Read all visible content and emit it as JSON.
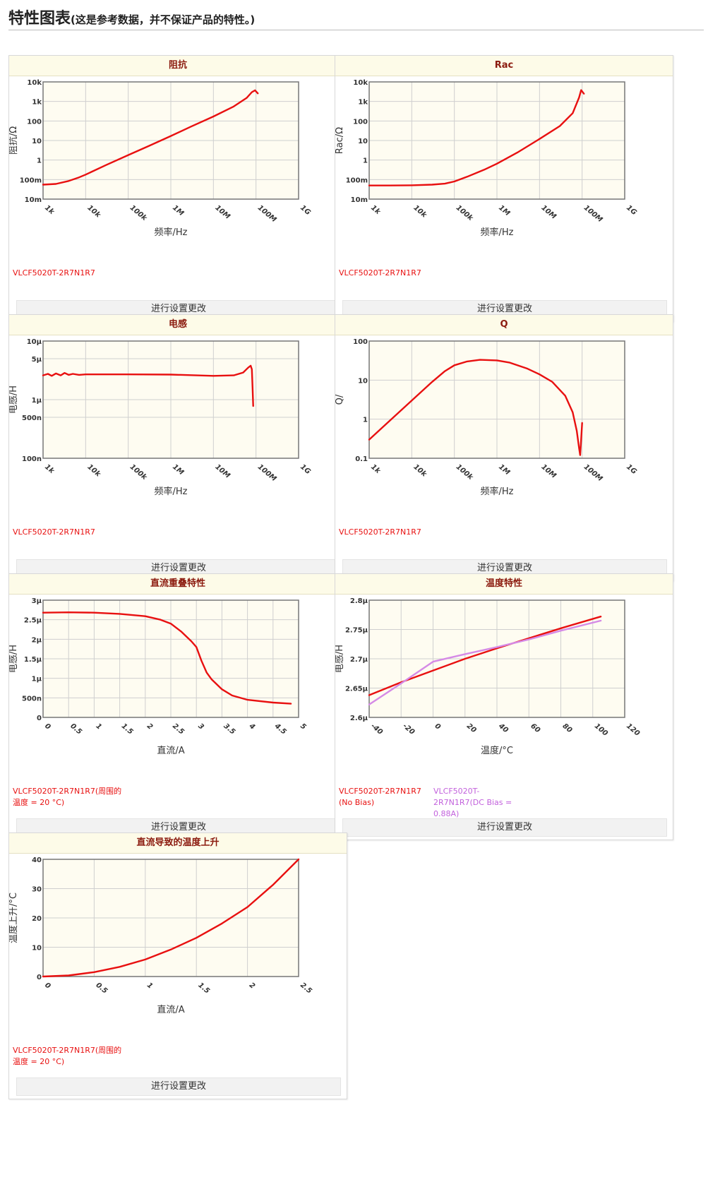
{
  "page": {
    "title": "特性图表",
    "subtitle": "(这是参考数据，并不保证产品的特性。)"
  },
  "colors": {
    "series_red": "#e81010",
    "series_violet": "#d58ae6",
    "legend_red": "#e81010",
    "legend_violet": "#c261dc",
    "plot_bg": "#fefcf1",
    "grid": "#cfcfcf",
    "frame": "#777777",
    "title_text": "#8b1a0e"
  },
  "footer_label": "进行设置更改",
  "panels": [
    {
      "title": "阻抗",
      "chart_data": {
        "type": "line",
        "xscale": "log",
        "yscale": "log",
        "xlim": [
          1000,
          1000000000
        ],
        "ylim": [
          0.01,
          10000
        ],
        "xlabel": "频率/Hz",
        "ylabel": "阻抗/Ω",
        "xticks": [
          1000,
          10000,
          100000,
          1000000,
          10000000,
          100000000,
          1000000000
        ],
        "xticklabels": [
          "1k",
          "10k",
          "100k",
          "1M",
          "10M",
          "100M",
          "1G"
        ],
        "yticks": [
          0.01,
          0.1,
          1,
          10,
          100,
          1000,
          10000
        ],
        "yticklabels": [
          "10m",
          "100m",
          "1",
          "10",
          "100",
          "1k",
          "10k"
        ],
        "grid": true,
        "series": [
          {
            "name": "VLCF5020T-2R7N1R7",
            "color": "red",
            "x": [
              1000,
              2000,
              4000,
              7000,
              10000,
              30000,
              100000,
              300000,
              1000000,
              3000000,
              10000000,
              30000000,
              60000000,
              80000000,
              95000000,
              110000000
            ],
            "y": [
              0.055,
              0.06,
              0.085,
              0.13,
              0.18,
              0.55,
              1.8,
              5.2,
              17,
              52,
              170,
              550,
              1500,
              3000,
              3700,
              2600
            ]
          }
        ]
      },
      "legend": [
        {
          "text": "VLCF5020T-2R7N1R7",
          "color": "red"
        }
      ]
    },
    {
      "title": "Rac",
      "chart_data": {
        "type": "line",
        "xscale": "log",
        "yscale": "log",
        "xlim": [
          1000,
          1000000000
        ],
        "ylim": [
          0.01,
          10000
        ],
        "xlabel": "频率/Hz",
        "ylabel": "Rac/Ω",
        "xticks": [
          1000,
          10000,
          100000,
          1000000,
          10000000,
          100000000,
          1000000000
        ],
        "xticklabels": [
          "1k",
          "10k",
          "100k",
          "1M",
          "10M",
          "100M",
          "1G"
        ],
        "yticks": [
          0.01,
          0.1,
          1,
          10,
          100,
          1000,
          10000
        ],
        "yticklabels": [
          "10m",
          "100m",
          "1",
          "10",
          "100",
          "1k",
          "10k"
        ],
        "grid": true,
        "series": [
          {
            "name": "VLCF5020T-2R7N1R7",
            "color": "red",
            "x": [
              1000,
              3000,
              10000,
              30000,
              60000,
              100000,
              200000,
              500000,
              1000000,
              3000000,
              10000000,
              30000000,
              60000000,
              85000000,
              95000000,
              110000000
            ],
            "y": [
              0.05,
              0.05,
              0.051,
              0.055,
              0.062,
              0.08,
              0.14,
              0.32,
              0.65,
              2.4,
              12,
              55,
              250,
              1600,
              3800,
              2500
            ]
          }
        ]
      },
      "legend": [
        {
          "text": "VLCF5020T-2R7N1R7",
          "color": "red"
        }
      ]
    },
    {
      "title": "电感",
      "chart_data": {
        "type": "line",
        "xscale": "log",
        "yscale": "log",
        "xlim": [
          1000,
          1000000000
        ],
        "ylim": [
          1e-07,
          1e-05
        ],
        "xlabel": "频率/Hz",
        "ylabel": "电感/H",
        "xticks": [
          1000,
          10000,
          100000,
          1000000,
          10000000,
          100000000,
          1000000000
        ],
        "xticklabels": [
          "1k",
          "10k",
          "100k",
          "1M",
          "10M",
          "100M",
          "1G"
        ],
        "yticks": [
          1e-07,
          5e-07,
          1e-06,
          5e-06,
          1e-05
        ],
        "yticklabels": [
          "100n",
          "500n",
          "1μ",
          "5μ",
          "10μ"
        ],
        "grid": true,
        "series": [
          {
            "name": "VLCF5020T-2R7N1R7",
            "color": "red",
            "x": [
              1000,
              1300,
              1600,
              2000,
              2600,
              3200,
              4000,
              5000,
              7000,
              10000,
              100000,
              1000000,
              10000000,
              30000000,
              50000000,
              65000000,
              75000000,
              80000000,
              83000000,
              86000000
            ],
            "y": [
              2.6e-06,
              2.75e-06,
              2.55e-06,
              2.8e-06,
              2.6e-06,
              2.85e-06,
              2.65e-06,
              2.75e-06,
              2.65e-06,
              2.7e-06,
              2.7e-06,
              2.68e-06,
              2.55e-06,
              2.6e-06,
              2.9e-06,
              3.5e-06,
              3.8e-06,
              3.3e-06,
              1.6e-06,
              7.8e-07
            ]
          }
        ]
      },
      "legend": [
        {
          "text": "VLCF5020T-2R7N1R7",
          "color": "red"
        }
      ]
    },
    {
      "title": "Q",
      "chart_data": {
        "type": "line",
        "xscale": "log",
        "yscale": "log",
        "xlim": [
          1000,
          1000000000
        ],
        "ylim": [
          0.1,
          100
        ],
        "xlabel": "频率/Hz",
        "ylabel": "Q/",
        "xticks": [
          1000,
          10000,
          100000,
          1000000,
          10000000,
          100000000,
          1000000000
        ],
        "xticklabels": [
          "1k",
          "10k",
          "100k",
          "1M",
          "10M",
          "100M",
          "1G"
        ],
        "yticks": [
          0.1,
          1,
          10,
          100
        ],
        "yticklabels": [
          "0.1",
          "1",
          "10",
          "100"
        ],
        "grid": true,
        "series": [
          {
            "name": "VLCF5020T-2R7N1R7",
            "color": "red",
            "x": [
              1000,
              2000,
              4000,
              10000,
              30000,
              60000,
              100000,
              200000,
              400000,
              1000000,
              2000000,
              5000000,
              10000000,
              20000000,
              40000000,
              60000000,
              75000000,
              85000000,
              90000000,
              95000000,
              100000000
            ],
            "y": [
              0.3,
              0.6,
              1.2,
              3,
              9,
              17,
              24,
              30,
              33,
              32,
              28,
              20,
              14,
              9,
              4,
              1.5,
              0.5,
              0.18,
              0.12,
              0.3,
              0.8
            ]
          }
        ]
      },
      "legend": [
        {
          "text": "VLCF5020T-2R7N1R7",
          "color": "red"
        }
      ]
    },
    {
      "title": "直流重叠特性",
      "chart_data": {
        "type": "line",
        "xscale": "linear",
        "yscale": "linear",
        "xlim": [
          0,
          5
        ],
        "ylim": [
          0,
          3e-06
        ],
        "xlabel": "直流/A",
        "ylabel": "电感/H",
        "xticks": [
          0,
          0.5,
          1,
          1.5,
          2,
          2.5,
          3,
          3.5,
          4,
          4.5,
          5
        ],
        "xticklabels": [
          "0",
          "0.5",
          "1",
          "1.5",
          "2",
          "2.5",
          "3",
          "3.5",
          "4",
          "4.5",
          "5"
        ],
        "yticks": [
          0,
          5e-07,
          1e-06,
          1.5e-06,
          2e-06,
          2.5e-06,
          3e-06
        ],
        "yticklabels": [
          "0",
          "500n",
          "1μ",
          "1.5μ",
          "2μ",
          "2.5μ",
          "3μ"
        ],
        "grid": true,
        "series": [
          {
            "name": "VLCF5020T-2R7N1R7",
            "color": "red",
            "x": [
              0,
              0.5,
              1,
              1.5,
              2,
              2.3,
              2.5,
              2.7,
              2.9,
              3.0,
              3.1,
              3.2,
              3.3,
              3.5,
              3.7,
              4.0,
              4.5,
              4.85
            ],
            "y": [
              2.68e-06,
              2.69e-06,
              2.68e-06,
              2.65e-06,
              2.59e-06,
              2.5e-06,
              2.4e-06,
              2.2e-06,
              1.95e-06,
              1.8e-06,
              1.45e-06,
              1.15e-06,
              9.7e-07,
              7.2e-07,
              5.6e-07,
              4.5e-07,
              3.8e-07,
              3.5e-07
            ]
          }
        ]
      },
      "legend": [
        {
          "text": "VLCF5020T-2R7N1R7(周围的温度 = 20 °C)",
          "color": "red"
        }
      ]
    },
    {
      "title": "温度特性",
      "chart_data": {
        "type": "line",
        "xscale": "linear",
        "yscale": "linear",
        "xlim": [
          -40,
          120
        ],
        "ylim": [
          2.6e-06,
          2.8e-06
        ],
        "xlabel": "温度/°C",
        "ylabel": "电感/H",
        "xticks": [
          -40,
          -20,
          0,
          20,
          40,
          60,
          80,
          100,
          120
        ],
        "xticklabels": [
          "-40",
          "-20",
          "0",
          "20",
          "40",
          "60",
          "80",
          "100",
          "120"
        ],
        "yticks": [
          2.6e-06,
          2.65e-06,
          2.7e-06,
          2.75e-06,
          2.8e-06
        ],
        "yticklabels": [
          "2.6μ",
          "2.65μ",
          "2.7μ",
          "2.75μ",
          "2.8μ"
        ],
        "grid": true,
        "series": [
          {
            "name": "VLCF5020T-2R7N1R7(No Bias)",
            "color": "red",
            "x": [
              -40,
              -20,
              0,
              20,
              40,
              60,
              80,
              105
            ],
            "y": [
              2.638e-06,
              2.66e-06,
              2.68e-06,
              2.7e-06,
              2.718e-06,
              2.735e-06,
              2.752e-06,
              2.772e-06
            ]
          },
          {
            "name": "VLCF5020T-2R7N1R7(DC Bias = 0.88A)",
            "color": "violet",
            "x": [
              -40,
              -20,
              0,
              20,
              40,
              60,
              80,
              105
            ],
            "y": [
              2.622e-06,
              2.658e-06,
              2.695e-06,
              2.708e-06,
              2.72e-06,
              2.733e-06,
              2.748e-06,
              2.765e-06
            ]
          }
        ]
      },
      "legend": [
        {
          "text": "VLCF5020T-2R7N1R7 (No Bias)",
          "color": "red"
        },
        {
          "text": "VLCF5020T-2R7N1R7(DC Bias = 0.88A)",
          "color": "violet"
        }
      ]
    },
    {
      "title": "直流导致的温度上升",
      "chart_data": {
        "type": "line",
        "xscale": "linear",
        "yscale": "linear",
        "xlim": [
          0,
          2.5
        ],
        "ylim": [
          0,
          40
        ],
        "xlabel": "直流/A",
        "ylabel": "温度上升/°C",
        "xticks": [
          0,
          0.5,
          1,
          1.5,
          2,
          2.5
        ],
        "xticklabels": [
          "0",
          "0.5",
          "1",
          "1.5",
          "2",
          "2.5"
        ],
        "yticks": [
          0,
          10,
          20,
          30,
          40
        ],
        "yticklabels": [
          "0",
          "10",
          "20",
          "30",
          "40"
        ],
        "grid": true,
        "series": [
          {
            "name": "VLCF5020T-2R7N1R7",
            "color": "red",
            "x": [
              0,
              0.25,
              0.5,
              0.75,
              1,
              1.25,
              1.5,
              1.75,
              2,
              2.25,
              2.5
            ],
            "y": [
              0,
              0.35,
              1.5,
              3.3,
              5.8,
              9.2,
              13.2,
              18.1,
              23.7,
              31.3,
              40
            ]
          }
        ]
      },
      "legend": [
        {
          "text": "VLCF5020T-2R7N1R7(周围的温度 = 20 °C)",
          "color": "red"
        }
      ]
    }
  ]
}
